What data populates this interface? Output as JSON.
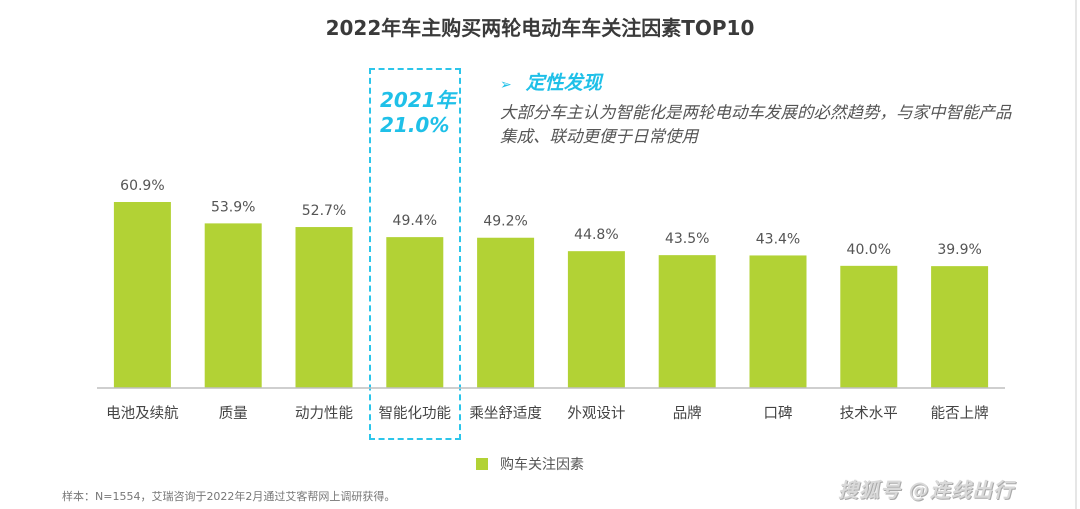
{
  "chart_data": {
    "type": "bar",
    "title": "2022年车主购买两轮电动车车关注因素TOP10",
    "categories": [
      "电池及续航",
      "质量",
      "动力性能",
      "智能化功能",
      "乘坐舒适度",
      "外观设计",
      "品牌",
      "口碑",
      "技术水平",
      "能否上牌"
    ],
    "series": [
      {
        "name": "购车关注因素",
        "values": [
          60.9,
          53.9,
          52.7,
          49.4,
          49.2,
          44.8,
          43.5,
          43.4,
          40.0,
          39.9
        ],
        "color": "#b2d235"
      }
    ],
    "value_labels": [
      "60.9%",
      "53.9%",
      "52.7%",
      "49.4%",
      "49.2%",
      "44.8%",
      "43.5%",
      "43.4%",
      "40.0%",
      "39.9%"
    ],
    "xlabel": "",
    "ylabel": "",
    "ylim": [
      0,
      65
    ],
    "grid": false,
    "legend": "bottom-center",
    "highlighted_category": "智能化功能",
    "annotation": {
      "year_label": "2021年",
      "value_label": "21.0%"
    }
  },
  "findings": {
    "arrow": "➢",
    "heading": "定性发现",
    "body": "大部分车主认为智能化是两轮电动车发展的必然趋势，与家中智能产品集成、联动更便于日常使用"
  },
  "legend": {
    "label": "购车关注因素",
    "color": "#b2d235"
  },
  "footnote": "样本：N=1554，艾瑞咨询于2022年2月通过艾客帮网上调研获得。",
  "watermark": "搜狐号 @连线出行",
  "colors": {
    "bar": "#b2d235",
    "accent": "#1fc0e8",
    "axis": "#bfbfbf"
  }
}
